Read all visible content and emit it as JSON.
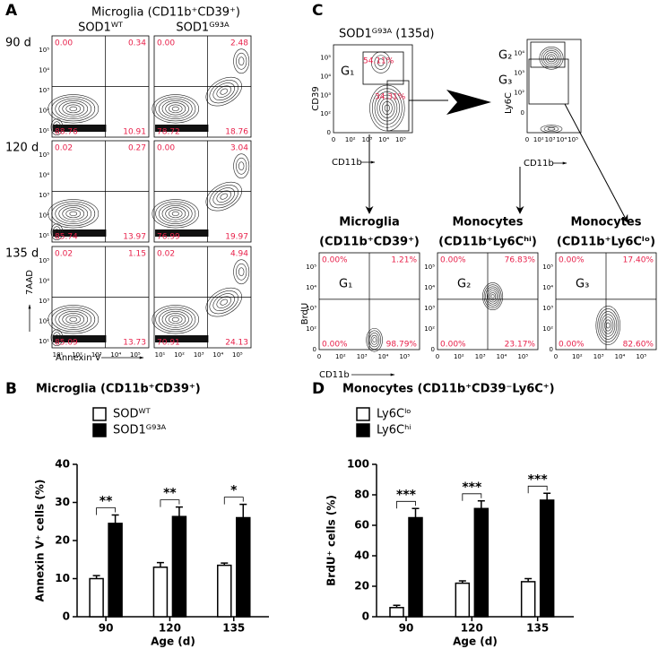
{
  "panel_a": {
    "label": "A",
    "title": "Microglia (CD11b⁺CD39⁺)",
    "columns": [
      "SOD1ᵂᵀ",
      "SOD1ᴳ⁹³ᴬ"
    ],
    "rows": [
      {
        "label": "90 d",
        "quadrants": [
          [
            "0.00",
            "0.34",
            "88.76",
            "10.91"
          ],
          [
            "0.00",
            "2.48",
            "78.72",
            "18.76"
          ]
        ]
      },
      {
        "label": "120 d",
        "quadrants": [
          [
            "0.02",
            "0.27",
            "85.74",
            "13.97"
          ],
          [
            "0.00",
            "3.04",
            "76.99",
            "19.97"
          ]
        ]
      },
      {
        "label": "135 d",
        "quadrants": [
          [
            "0.02",
            "1.15",
            "85.09",
            "13.73"
          ],
          [
            "0.02",
            "4.94",
            "70.91",
            "24.13"
          ]
        ]
      }
    ],
    "y_axis": "7AAD",
    "x_axis": "Annexin V",
    "ticks": [
      "10¹",
      "10²",
      "10³",
      "10⁴",
      "10⁵"
    ]
  },
  "panel_c": {
    "label": "C",
    "ticks": [
      "0",
      "10²",
      "10³",
      "10⁴",
      "10⁵"
    ],
    "gate_plot_1": {
      "title": "SOD1ᴳ⁹³ᴬ (135d)",
      "gate": "G₁",
      "percent_upper": "54.11%",
      "percent_lower": "34.31%",
      "y_axis": "CD39",
      "x_axis": "CD11b"
    },
    "gate_plot_2": {
      "gate_upper": "G₂",
      "gate_lower": "G₃",
      "y_axis": "Ly6C",
      "x_axis": "CD11b"
    },
    "plots": [
      {
        "title": "Microglia",
        "subtitle": "(CD11b⁺CD39⁺)",
        "gate": "G₁",
        "quadrants": [
          "0.00%",
          "1.21%",
          "0.00%",
          "98.79%"
        ],
        "y_axis": "BrdU",
        "x_axis": "CD11b"
      },
      {
        "title": "Monocytes",
        "subtitle": "(CD11b⁺Ly6Cʰⁱ)",
        "gate": "G₂",
        "quadrants": [
          "0.00%",
          "76.83%",
          "0.00%",
          "23.17%"
        ]
      },
      {
        "title": "Monocytes",
        "subtitle": "(CD11b⁺Ly6Cˡᵒ)",
        "gate": "G₃",
        "quadrants": [
          "0.00%",
          "17.40%",
          "0.00%",
          "82.60%"
        ]
      }
    ]
  },
  "chart_data": [
    {
      "type": "bar",
      "panel": "B",
      "title": "Microglia (CD11b⁺CD39⁺)",
      "xlabel": "Age (d)",
      "ylabel": "Annexin V⁺ cells (%)",
      "categories": [
        "90",
        "120",
        "135"
      ],
      "series": [
        {
          "name": "SODᵂᵀ",
          "color": "#ffffff",
          "values": [
            10,
            13,
            13.5
          ],
          "errors": [
            0.8,
            1.2,
            0.6
          ]
        },
        {
          "name": "SOD1ᴳ⁹³ᴬ",
          "color": "#000000",
          "values": [
            24.5,
            26.3,
            26
          ],
          "errors": [
            2.2,
            2.5,
            3.5
          ]
        }
      ],
      "significance": [
        "**",
        "**",
        "*"
      ],
      "ylim": [
        0,
        40
      ],
      "yticks": [
        0,
        10,
        20,
        30,
        40
      ]
    },
    {
      "type": "bar",
      "panel": "D",
      "title": "Monocytes (CD11b⁺CD39⁻Ly6C⁺)",
      "xlabel": "Age (d)",
      "ylabel": "BrdU⁺ cells (%)",
      "categories": [
        "90",
        "120",
        "135"
      ],
      "series": [
        {
          "name": "Ly6Cˡᵒ",
          "color": "#ffffff",
          "values": [
            6,
            22,
            23
          ],
          "errors": [
            1.5,
            1.5,
            2
          ]
        },
        {
          "name": "Ly6Cʰⁱ",
          "color": "#000000",
          "values": [
            65,
            71,
            76.5
          ],
          "errors": [
            6,
            5,
            4.5
          ]
        }
      ],
      "significance": [
        "***",
        "***",
        "***"
      ],
      "ylim": [
        0,
        100
      ],
      "yticks": [
        0,
        20,
        40,
        60,
        80,
        100
      ]
    }
  ]
}
